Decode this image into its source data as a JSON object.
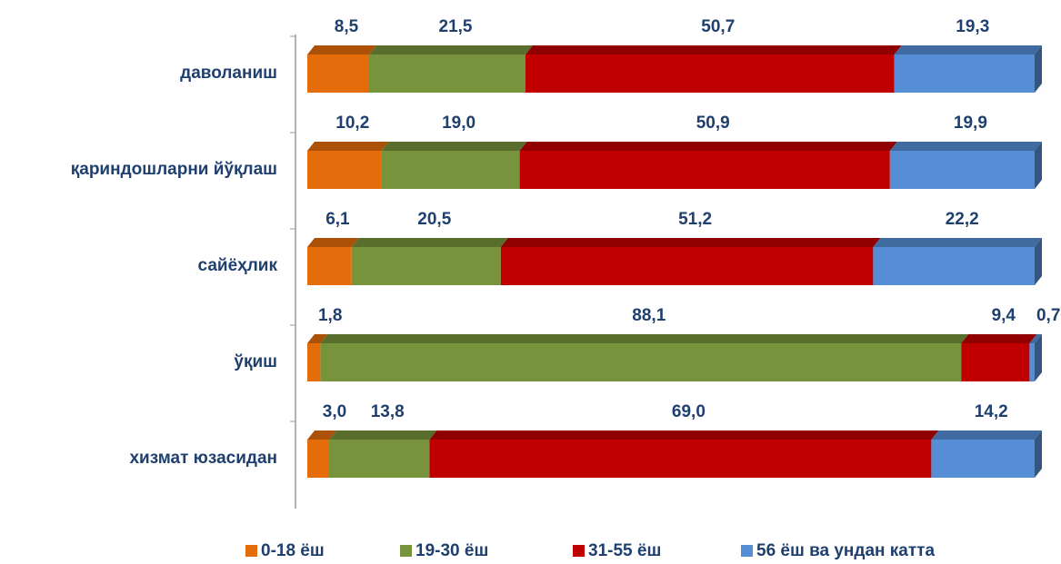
{
  "chart_data": {
    "type": "stacked-bar-horizontal",
    "categories": [
      "даволаниш",
      "қариндошларни йўқлаш",
      "сайёҳлик",
      "ўқиш",
      "хизмат юзасидан"
    ],
    "series": [
      {
        "name": "0-18 ёш",
        "color": "#e46c0a",
        "values": [
          8.5,
          10.2,
          6.1,
          1.8,
          3.0
        ],
        "value_labels": [
          "8,5",
          "10,2",
          "6,1",
          "1,8",
          "3,0"
        ]
      },
      {
        "name": "19-30 ёш",
        "color": "#77933c",
        "values": [
          21.5,
          19.0,
          20.5,
          88.1,
          13.8
        ],
        "value_labels": [
          "21,5",
          "19,0",
          "20,5",
          "88,1",
          "13,8"
        ]
      },
      {
        "name": "31-55 ёш",
        "color": "#c00000",
        "values": [
          50.7,
          50.9,
          51.2,
          9.4,
          69.0
        ],
        "value_labels": [
          "50,7",
          "50,9",
          "51,2",
          "9,4",
          "69,0"
        ]
      },
      {
        "name": "56 ёш ва ундан катта",
        "color": "#558ed5",
        "values": [
          19.3,
          19.9,
          22.2,
          0.7,
          14.2
        ],
        "value_labels": [
          "19,3",
          "19,9",
          "22,2",
          "0,7",
          "14,2"
        ]
      }
    ],
    "legend": "bottom"
  }
}
